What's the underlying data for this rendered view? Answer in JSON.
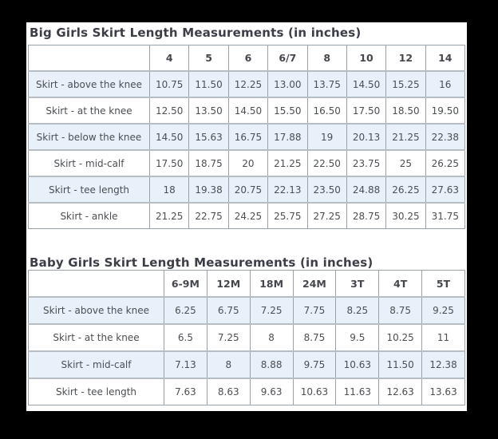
{
  "page": {
    "frame_color": "#000000",
    "surface_color": "#ffffff",
    "accent_row_color": "#e8f1f9",
    "border_color": "#9aa2a9",
    "title_color": "#3c3e47",
    "text_color": "#4b4e52"
  },
  "tables": [
    {
      "title": "Big Girls Skirt Length Measurements (in inches)",
      "columns": [
        "",
        "4",
        "5",
        "6",
        "6/7",
        "8",
        "10",
        "12",
        "14"
      ],
      "rows": [
        {
          "label": "Skirt - above the knee",
          "values": [
            "10.75",
            "11.50",
            "12.25",
            "13.00",
            "13.75",
            "14.50",
            "15.25",
            "16"
          ]
        },
        {
          "label": "Skirt - at the knee",
          "values": [
            "12.50",
            "13.50",
            "14.50",
            "15.50",
            "16.50",
            "17.50",
            "18.50",
            "19.50"
          ]
        },
        {
          "label": "Skirt - below the knee",
          "values": [
            "14.50",
            "15.63",
            "16.75",
            "17.88",
            "19",
            "20.13",
            "21.25",
            "22.38"
          ]
        },
        {
          "label": "Skirt - mid-calf",
          "values": [
            "17.50",
            "18.75",
            "20",
            "21.25",
            "22.50",
            "23.75",
            "25",
            "26.25"
          ]
        },
        {
          "label": "Skirt - tee length",
          "values": [
            "18",
            "19.38",
            "20.75",
            "22.13",
            "23.50",
            "24.88",
            "26.25",
            "27.63"
          ]
        },
        {
          "label": "Skirt - ankle",
          "values": [
            "21.25",
            "22.75",
            "24.25",
            "25.75",
            "27.25",
            "28.75",
            "30.25",
            "31.75"
          ]
        }
      ]
    },
    {
      "title": "Baby Girls Skirt Length Measurements (in inches)",
      "columns": [
        "",
        "6-9M",
        "12M",
        "18M",
        "24M",
        "3T",
        "4T",
        "5T"
      ],
      "rows": [
        {
          "label": "Skirt - above the knee",
          "values": [
            "6.25",
            "6.75",
            "7.25",
            "7.75",
            "8.25",
            "8.75",
            "9.25"
          ]
        },
        {
          "label": "Skirt - at the knee",
          "values": [
            "6.5",
            "7.25",
            "8",
            "8.75",
            "9.5",
            "10.25",
            "11"
          ]
        },
        {
          "label": "Skirt - mid-calf",
          "values": [
            "7.13",
            "8",
            "8.88",
            "9.75",
            "10.63",
            "11.50",
            "12.38"
          ]
        },
        {
          "label": "Skirt - tee length",
          "values": [
            "7.63",
            "8.63",
            "9.63",
            "10.63",
            "11.63",
            "12.63",
            "13.63"
          ]
        }
      ]
    }
  ]
}
